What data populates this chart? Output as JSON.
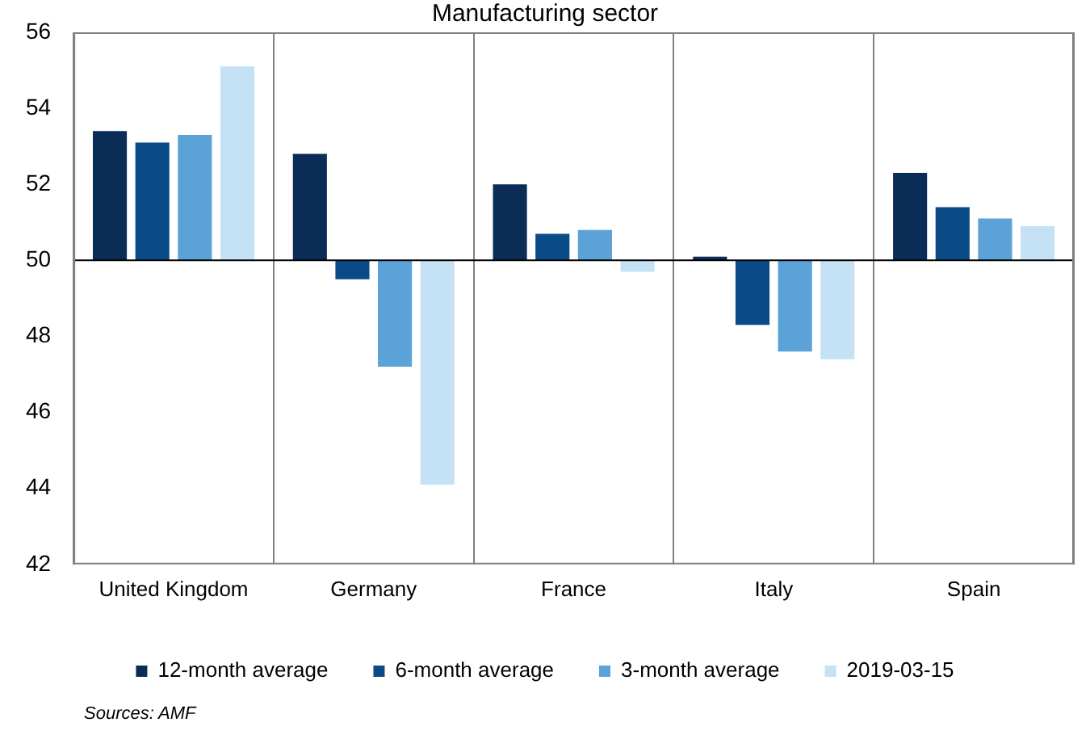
{
  "chart_data": {
    "type": "bar",
    "title": "Manufacturing sector",
    "categories": [
      "United Kingdom",
      "Germany",
      "France",
      "Italy",
      "Spain"
    ],
    "series": [
      {
        "name": "12-month average",
        "color": "#0b2c56",
        "base": [
          50,
          50,
          50,
          50,
          50
        ],
        "values": [
          3.4,
          2.8,
          2.0,
          0.1,
          2.3
        ]
      },
      {
        "name": "6-month average",
        "color": "#0a4a86",
        "base": [
          50,
          50,
          50,
          50,
          50
        ],
        "values": [
          3.1,
          -0.5,
          0.7,
          -1.7,
          1.4
        ]
      },
      {
        "name": "3-month average",
        "color": "#5aa2d8",
        "base": [
          50,
          50,
          50,
          50,
          50
        ],
        "values": [
          3.3,
          -2.8,
          0.8,
          -2.4,
          1.1
        ]
      },
      {
        "name": "2019-03-15",
        "color": "#c4e1f6",
        "base": [
          50,
          50,
          50,
          50,
          50
        ],
        "values": [
          5.1,
          -5.9,
          -0.3,
          -2.6,
          0.9
        ]
      }
    ],
    "ylim": [
      42,
      56
    ],
    "yticks": [
      42,
      44,
      46,
      48,
      50,
      52,
      54,
      56
    ],
    "grid": "x",
    "legend": "bottom",
    "ref_lines": [
      {
        "axis": "y",
        "value": 50,
        "color": "#000000"
      }
    ],
    "annotations": [
      "Sources: AMF"
    ]
  }
}
